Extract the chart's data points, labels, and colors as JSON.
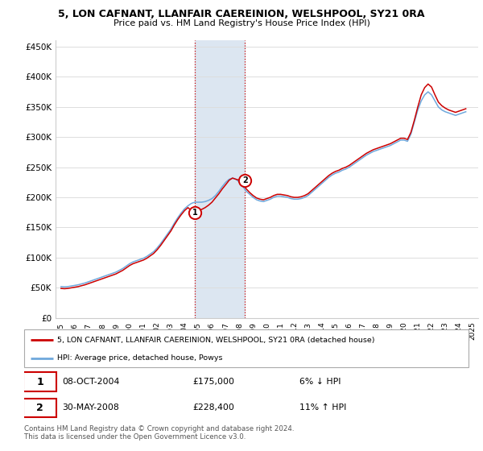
{
  "title1": "5, LON CAFNANT, LLANFAIR CAEREINION, WELSHPOOL, SY21 0RA",
  "title2": "Price paid vs. HM Land Registry's House Price Index (HPI)",
  "ylim": [
    0,
    460000
  ],
  "yticks": [
    0,
    50000,
    100000,
    150000,
    200000,
    250000,
    300000,
    350000,
    400000,
    450000
  ],
  "ytick_labels": [
    "£0",
    "£50K",
    "£100K",
    "£150K",
    "£200K",
    "£250K",
    "£300K",
    "£350K",
    "£400K",
    "£450K"
  ],
  "x_start_year": 1995,
  "x_end_year": 2025,
  "sale1_year": 2004.77,
  "sale1_price": 175000,
  "sale1_label": "1",
  "sale2_year": 2008.41,
  "sale2_price": 228400,
  "sale2_label": "2",
  "transaction1_date": "08-OCT-2004",
  "transaction1_price": "£175,000",
  "transaction1_info": "6% ↓ HPI",
  "transaction2_date": "30-MAY-2008",
  "transaction2_price": "£228,400",
  "transaction2_info": "11% ↑ HPI",
  "hpi_color": "#6fa8dc",
  "sale_color": "#cc0000",
  "shading_color": "#dce6f1",
  "legend_label1": "5, LON CAFNANT, LLANFAIR CAEREINION, WELSHPOOL, SY21 0RA (detached house)",
  "legend_label2": "HPI: Average price, detached house, Powys",
  "footer": "Contains HM Land Registry data © Crown copyright and database right 2024.\nThis data is licensed under the Open Government Licence v3.0.",
  "hpi_data_x": [
    1995.0,
    1995.25,
    1995.5,
    1995.75,
    1996.0,
    1996.25,
    1996.5,
    1996.75,
    1997.0,
    1997.25,
    1997.5,
    1997.75,
    1998.0,
    1998.25,
    1998.5,
    1998.75,
    1999.0,
    1999.25,
    1999.5,
    1999.75,
    2000.0,
    2000.25,
    2000.5,
    2000.75,
    2001.0,
    2001.25,
    2001.5,
    2001.75,
    2002.0,
    2002.25,
    2002.5,
    2002.75,
    2003.0,
    2003.25,
    2003.5,
    2003.75,
    2004.0,
    2004.25,
    2004.5,
    2004.75,
    2005.0,
    2005.25,
    2005.5,
    2005.75,
    2006.0,
    2006.25,
    2006.5,
    2006.75,
    2007.0,
    2007.25,
    2007.5,
    2007.75,
    2008.0,
    2008.25,
    2008.5,
    2008.75,
    2009.0,
    2009.25,
    2009.5,
    2009.75,
    2010.0,
    2010.25,
    2010.5,
    2010.75,
    2011.0,
    2011.25,
    2011.5,
    2011.75,
    2012.0,
    2012.25,
    2012.5,
    2012.75,
    2013.0,
    2013.25,
    2013.5,
    2013.75,
    2014.0,
    2014.25,
    2014.5,
    2014.75,
    2015.0,
    2015.25,
    2015.5,
    2015.75,
    2016.0,
    2016.25,
    2016.5,
    2016.75,
    2017.0,
    2017.25,
    2017.5,
    2017.75,
    2018.0,
    2018.25,
    2018.5,
    2018.75,
    2019.0,
    2019.25,
    2019.5,
    2019.75,
    2020.0,
    2020.25,
    2020.5,
    2020.75,
    2021.0,
    2021.25,
    2021.5,
    2021.75,
    2022.0,
    2022.25,
    2022.5,
    2022.75,
    2023.0,
    2023.25,
    2023.5,
    2023.75,
    2024.0,
    2024.25,
    2024.5
  ],
  "hpi_data_y": [
    52000,
    51500,
    52000,
    53000,
    54000,
    55000,
    56500,
    58000,
    60000,
    62000,
    64000,
    66000,
    68000,
    70000,
    72000,
    74000,
    76000,
    79000,
    82000,
    86000,
    90000,
    93000,
    95000,
    97000,
    99000,
    102000,
    106000,
    110000,
    116000,
    123000,
    131000,
    139000,
    147000,
    157000,
    166000,
    174000,
    181000,
    186000,
    190000,
    192000,
    192000,
    192000,
    193000,
    195000,
    198000,
    203000,
    210000,
    218000,
    225000,
    230000,
    232000,
    230000,
    225000,
    218000,
    210000,
    205000,
    200000,
    196000,
    194000,
    193000,
    195000,
    197000,
    200000,
    202000,
    202000,
    201000,
    200000,
    198000,
    197000,
    197000,
    198000,
    200000,
    203000,
    208000,
    213000,
    218000,
    223000,
    228000,
    233000,
    237000,
    240000,
    242000,
    245000,
    247000,
    250000,
    254000,
    258000,
    262000,
    266000,
    270000,
    273000,
    276000,
    278000,
    280000,
    282000,
    284000,
    286000,
    289000,
    292000,
    295000,
    295000,
    293000,
    305000,
    325000,
    345000,
    360000,
    370000,
    375000,
    370000,
    360000,
    350000,
    345000,
    342000,
    340000,
    338000,
    336000,
    338000,
    340000,
    342000
  ],
  "sale_data_x": [
    1995.0,
    1995.25,
    1995.5,
    1995.75,
    1996.0,
    1996.25,
    1996.5,
    1996.75,
    1997.0,
    1997.25,
    1997.5,
    1997.75,
    1998.0,
    1998.25,
    1998.5,
    1998.75,
    1999.0,
    1999.25,
    1999.5,
    1999.75,
    2000.0,
    2000.25,
    2000.5,
    2000.75,
    2001.0,
    2001.25,
    2001.5,
    2001.75,
    2002.0,
    2002.25,
    2002.5,
    2002.75,
    2003.0,
    2003.25,
    2003.5,
    2003.75,
    2004.0,
    2004.25,
    2004.5,
    2004.75,
    2005.0,
    2005.25,
    2005.5,
    2005.75,
    2006.0,
    2006.25,
    2006.5,
    2006.75,
    2007.0,
    2007.25,
    2007.5,
    2007.75,
    2008.0,
    2008.25,
    2008.5,
    2008.75,
    2009.0,
    2009.25,
    2009.5,
    2009.75,
    2010.0,
    2010.25,
    2010.5,
    2010.75,
    2011.0,
    2011.25,
    2011.5,
    2011.75,
    2012.0,
    2012.25,
    2012.5,
    2012.75,
    2013.0,
    2013.25,
    2013.5,
    2013.75,
    2014.0,
    2014.25,
    2014.5,
    2014.75,
    2015.0,
    2015.25,
    2015.5,
    2015.75,
    2016.0,
    2016.25,
    2016.5,
    2016.75,
    2017.0,
    2017.25,
    2017.5,
    2017.75,
    2018.0,
    2018.25,
    2018.5,
    2018.75,
    2019.0,
    2019.25,
    2019.5,
    2019.75,
    2020.0,
    2020.25,
    2020.5,
    2020.75,
    2021.0,
    2021.25,
    2021.5,
    2021.75,
    2022.0,
    2022.25,
    2022.5,
    2022.75,
    2023.0,
    2023.25,
    2023.5,
    2023.75,
    2024.0,
    2024.25,
    2024.5
  ],
  "sale_data_y": [
    49000,
    48500,
    49000,
    50000,
    51000,
    52000,
    53500,
    55000,
    57000,
    59000,
    61000,
    63000,
    65000,
    67000,
    69000,
    71000,
    73000,
    76000,
    79000,
    83000,
    87000,
    90000,
    92000,
    94000,
    96000,
    99000,
    103000,
    107000,
    113000,
    120000,
    128000,
    136000,
    144000,
    154000,
    163000,
    171000,
    178000,
    183000,
    178000,
    175000,
    178000,
    180000,
    183000,
    187000,
    192000,
    199000,
    206000,
    214000,
    221000,
    228400,
    232000,
    230000,
    228400,
    222000,
    214000,
    208000,
    203000,
    199000,
    197000,
    196000,
    198000,
    200000,
    203000,
    205000,
    205000,
    204000,
    203000,
    201000,
    200000,
    200000,
    201000,
    203000,
    206000,
    211000,
    216000,
    221000,
    226000,
    231000,
    236000,
    240000,
    243000,
    245000,
    248000,
    250000,
    253000,
    257000,
    261000,
    265000,
    269000,
    273000,
    276000,
    279000,
    281000,
    283000,
    285000,
    287000,
    289000,
    292000,
    295000,
    298000,
    298000,
    296000,
    308000,
    328000,
    350000,
    370000,
    382000,
    388000,
    383000,
    370000,
    358000,
    352000,
    348000,
    345000,
    343000,
    341000,
    343000,
    345000,
    347000
  ]
}
